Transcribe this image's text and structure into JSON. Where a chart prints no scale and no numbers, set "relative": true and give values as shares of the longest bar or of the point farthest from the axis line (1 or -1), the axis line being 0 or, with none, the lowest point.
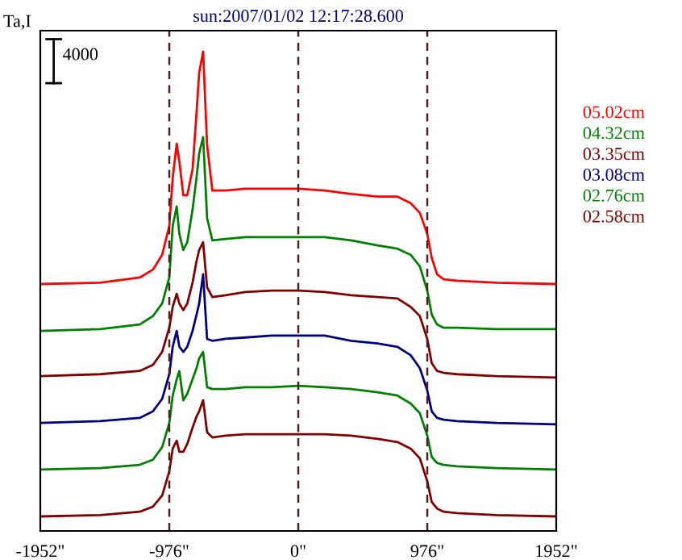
{
  "chart_data": {
    "type": "line",
    "title": "sun:2007/01/02 12:17:28.600",
    "ylabel": "Ta,I",
    "relative": true,
    "annotations": [
      "4000"
    ],
    "x": [
      -1952,
      -1500,
      -1200,
      -1100,
      -1030,
      -976,
      -950,
      -920,
      -900,
      -870,
      -840,
      -800,
      -770,
      -750,
      -720,
      -690,
      -650,
      -550,
      -400,
      -200,
      0,
      200,
      400,
      600,
      750,
      850,
      920,
      976,
      1010,
      1050,
      1100,
      1200,
      1500,
      1952
    ],
    "series": [
      {
        "name": "05.02cm",
        "color": "#ff0000",
        "values": [
          0.5,
          0.503,
          0.514,
          0.531,
          0.563,
          0.625,
          0.729,
          0.802,
          0.764,
          0.691,
          0.691,
          0.747,
          0.868,
          0.955,
          1.0,
          0.799,
          0.701,
          0.701,
          0.705,
          0.705,
          0.705,
          0.701,
          0.694,
          0.688,
          0.688,
          0.674,
          0.653,
          0.608,
          0.556,
          0.521,
          0.51,
          0.507,
          0.503,
          0.5
        ]
      },
      {
        "name": "04.32cm",
        "color": "#008000",
        "values": [
          0.399,
          0.403,
          0.413,
          0.431,
          0.458,
          0.514,
          0.625,
          0.667,
          0.608,
          0.573,
          0.59,
          0.66,
          0.729,
          0.781,
          0.816,
          0.642,
          0.594,
          0.597,
          0.601,
          0.601,
          0.601,
          0.601,
          0.594,
          0.583,
          0.576,
          0.563,
          0.538,
          0.486,
          0.434,
          0.413,
          0.406,
          0.406,
          0.403,
          0.403
        ]
      },
      {
        "name": "03.35cm",
        "color": "#800000",
        "values": [
          0.302,
          0.306,
          0.313,
          0.326,
          0.354,
          0.406,
          0.451,
          0.479,
          0.458,
          0.444,
          0.458,
          0.503,
          0.549,
          0.573,
          0.59,
          0.493,
          0.472,
          0.476,
          0.483,
          0.486,
          0.486,
          0.483,
          0.476,
          0.472,
          0.469,
          0.451,
          0.431,
          0.382,
          0.33,
          0.313,
          0.309,
          0.306,
          0.302,
          0.299
        ]
      },
      {
        "name": "03.08cm",
        "color": "#000080",
        "values": [
          0.201,
          0.205,
          0.212,
          0.226,
          0.253,
          0.306,
          0.365,
          0.399,
          0.365,
          0.354,
          0.365,
          0.399,
          0.434,
          0.458,
          0.521,
          0.382,
          0.378,
          0.382,
          0.385,
          0.389,
          0.389,
          0.389,
          0.378,
          0.372,
          0.365,
          0.347,
          0.319,
          0.271,
          0.226,
          0.212,
          0.208,
          0.205,
          0.201,
          0.198
        ]
      },
      {
        "name": "02.76cm",
        "color": "#008000",
        "values": [
          0.101,
          0.104,
          0.111,
          0.122,
          0.149,
          0.201,
          0.26,
          0.295,
          0.313,
          0.25,
          0.264,
          0.295,
          0.319,
          0.34,
          0.354,
          0.278,
          0.274,
          0.274,
          0.278,
          0.278,
          0.281,
          0.278,
          0.274,
          0.267,
          0.26,
          0.243,
          0.222,
          0.174,
          0.128,
          0.115,
          0.111,
          0.108,
          0.104,
          0.101
        ]
      },
      {
        "name": "02.58cm",
        "color": "#800000",
        "values": [
          0,
          0.003,
          0.01,
          0.021,
          0.045,
          0.097,
          0.146,
          0.163,
          0.139,
          0.139,
          0.156,
          0.191,
          0.215,
          0.226,
          0.25,
          0.181,
          0.17,
          0.174,
          0.177,
          0.177,
          0.177,
          0.177,
          0.174,
          0.167,
          0.16,
          0.146,
          0.125,
          0.076,
          0.031,
          0.017,
          0.01,
          0.007,
          0.003,
          0
        ]
      }
    ],
    "xlim": [
      -1952,
      1952
    ],
    "xticks": [
      {
        "value": -1952,
        "label": "-1952\""
      },
      {
        "value": -976,
        "label": "-976\""
      },
      {
        "value": 0,
        "label": "0\""
      },
      {
        "value": 976,
        "label": "976\""
      },
      {
        "value": 1952,
        "label": "1952\""
      }
    ],
    "ref_lines": [
      {
        "axis": "x",
        "value": -976,
        "color": "#4b2020",
        "line_style": "dashed"
      },
      {
        "axis": "x",
        "value": 0,
        "color": "#4b2020",
        "line_style": "dashed"
      },
      {
        "axis": "x",
        "value": 976,
        "color": "#4b2020",
        "line_style": "dashed"
      }
    ],
    "tick_labels": "x",
    "grid": false,
    "legend": "right",
    "marker": "none",
    "line_style": "solid"
  }
}
